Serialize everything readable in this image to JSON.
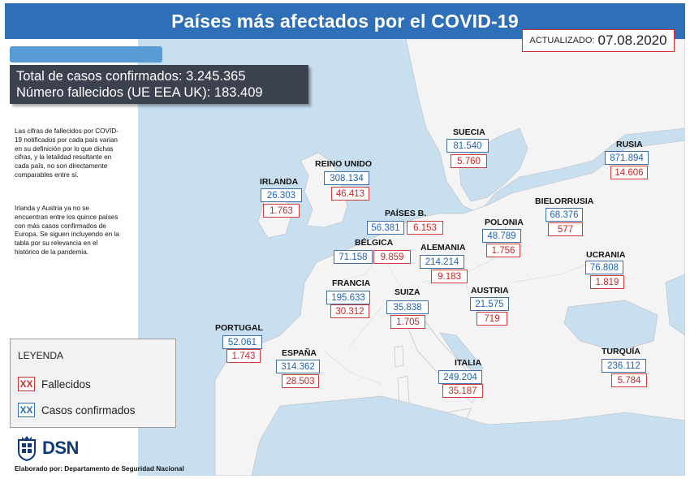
{
  "header": {
    "title": "Países más afectados por el COVID-19"
  },
  "update": {
    "label": "ACTUALIZADO:",
    "date": "07.08.2020"
  },
  "totals": {
    "confirmed": "Total de casos confirmados: 3.245.365",
    "deaths": "Número fallecidos (UE EEA UK): 183.409"
  },
  "notes": {
    "p1": "Las cifras de fallecidos por COVID-19 notificados por cada país varian en su definición por lo que dichas cifras, y la letalidad resultante en cada país, no son directamente comparables entre sí.",
    "p2": "Irlanda y Austria ya no se encuentran entre los quince países con más casos confirmados de Europa. Se siguen incluyendo en la tabla por su relevancia en el histórico de la pandemia."
  },
  "legend": {
    "title": "LEYENDA",
    "deaths_label": "Fallecidos",
    "cases_label": "Casos confirmados",
    "swatch_text": "XX",
    "deaths_color": "#d32f2f",
    "cases_color": "#2e6fb7"
  },
  "colors": {
    "header": "#2e6fb7",
    "sea": "#c8dff0",
    "land": "#f4f4f4"
  },
  "countries": [
    {
      "name": "SUECIA",
      "cases": "81.540",
      "deaths": "5.760"
    },
    {
      "name": "RUSIA",
      "cases": "871.894",
      "deaths": "14.606"
    },
    {
      "name": "REINO UNIDO",
      "cases": "308.134",
      "deaths": "46.413"
    },
    {
      "name": "IRLANDA",
      "cases": "26.303",
      "deaths": "1.763"
    },
    {
      "name": "BIELORRUSIA",
      "cases": "68.376",
      "deaths": "577"
    },
    {
      "name": "PAÍSES B.",
      "cases": "56.381",
      "deaths": "6.153"
    },
    {
      "name": "POLONIA",
      "cases": "48.789",
      "deaths": "1.756"
    },
    {
      "name": "BÉLGICA",
      "cases": "71.158",
      "deaths": "9.859"
    },
    {
      "name": "ALEMANIA",
      "cases": "214.214",
      "deaths": "9.183"
    },
    {
      "name": "UCRANIA",
      "cases": "76.808",
      "deaths": "1.819"
    },
    {
      "name": "FRANCIA",
      "cases": "195.633",
      "deaths": "30.312"
    },
    {
      "name": "SUIZA",
      "cases": "35.838",
      "deaths": "1.705"
    },
    {
      "name": "AUSTRIA",
      "cases": "21.575",
      "deaths": "719"
    },
    {
      "name": "PORTUGAL",
      "cases": "52.061",
      "deaths": "1.743"
    },
    {
      "name": "ESPAÑA",
      "cases": "314.362",
      "deaths": "28.503"
    },
    {
      "name": "ITALIA",
      "cases": "249.204",
      "deaths": "35.187"
    },
    {
      "name": "TURQUÍA",
      "cases": "236.112",
      "deaths": "5.784"
    }
  ],
  "logo": {
    "text": "DSN",
    "icon": "coat-of-arms-icon"
  },
  "footer": {
    "text": "Elaborado por: Departamento de Seguridad Nacional"
  }
}
